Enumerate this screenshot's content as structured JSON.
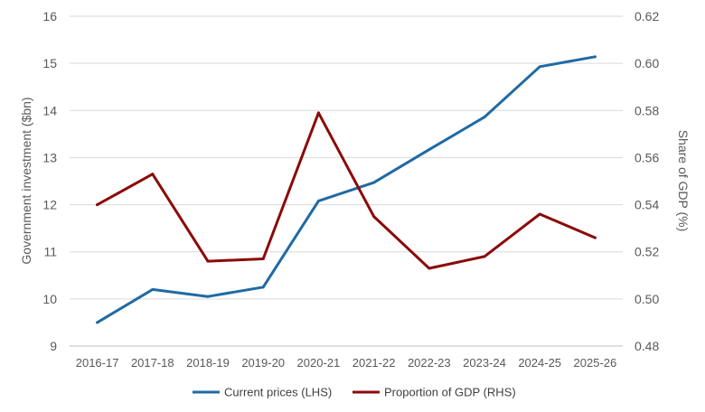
{
  "chart_data": {
    "type": "line",
    "title": "",
    "categories": [
      "2016-17",
      "2017-18",
      "2018-19",
      "2019-20",
      "2020-21",
      "2021-22",
      "2022-23",
      "2023-24",
      "2024-25",
      "2025-26"
    ],
    "y_left": {
      "label": "Government investment ($bn)",
      "ylim": [
        9,
        16
      ],
      "ticks": [
        9,
        10,
        11,
        12,
        13,
        14,
        15,
        16
      ]
    },
    "y_right": {
      "label": "Share of GDP (%)",
      "ylim": [
        0.48,
        0.62
      ],
      "ticks": [
        "0.48",
        "0.50",
        "0.52",
        "0.54",
        "0.56",
        "0.58",
        "0.60",
        "0.62"
      ]
    },
    "series": [
      {
        "name": "Current prices (LHS)",
        "axis": "left",
        "color": "#1f6aa5",
        "values": [
          9.5,
          10.2,
          10.05,
          10.25,
          12.08,
          12.47,
          13.17,
          13.86,
          14.93,
          15.14
        ]
      },
      {
        "name": "Proportion of GDP (RHS)",
        "axis": "right",
        "color": "#8b0a0a",
        "values": [
          0.54,
          0.553,
          0.516,
          0.517,
          0.579,
          0.535,
          0.513,
          0.518,
          0.536,
          0.526
        ]
      }
    ],
    "grid": true,
    "legend": "bottom"
  }
}
